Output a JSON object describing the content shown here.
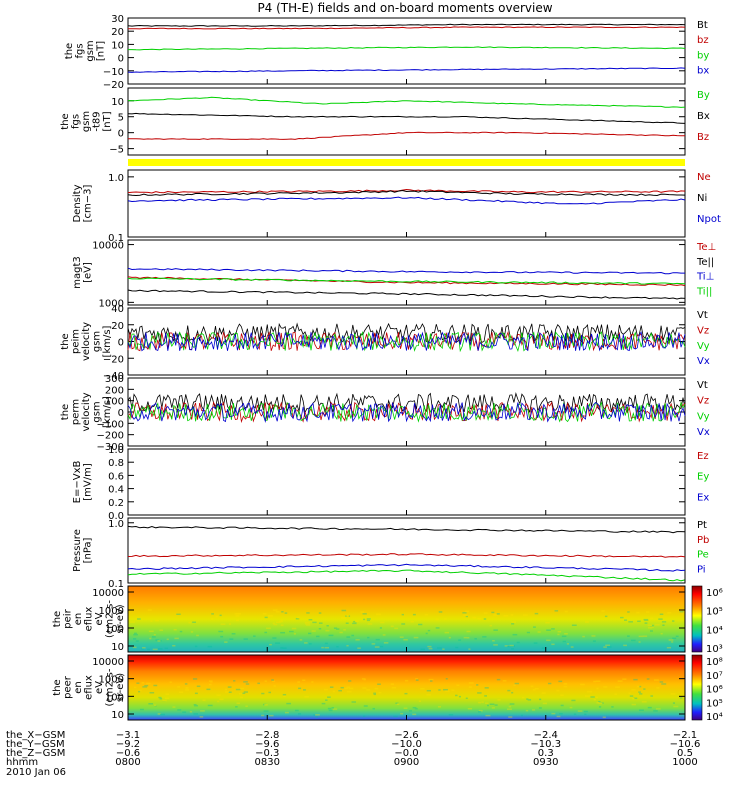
{
  "chart_data": {
    "type": "line",
    "title": "P4 (TH-E) fields and on-board moments overview",
    "panels": [
      {
        "id": "fgs",
        "ylabel_lines": [
          "the",
          "fgs",
          "gsm",
          "[nT]"
        ],
        "yticks": [
          "30",
          "20",
          "10",
          "0",
          "−10",
          "−20"
        ],
        "ylim": [
          -20,
          30
        ],
        "series": [
          {
            "name": "Bt",
            "color": "#000000",
            "x": [
              0,
              0.3,
              0.6,
              1
            ],
            "y": [
              24,
              24,
              25,
              25
            ]
          },
          {
            "name": "bz",
            "color": "#c00000",
            "x": [
              0,
              0.3,
              0.6,
              1
            ],
            "y": [
              22,
              22,
              23,
              23
            ]
          },
          {
            "name": "by",
            "color": "#00d000",
            "x": [
              0,
              0.3,
              0.6,
              1
            ],
            "y": [
              6,
              7,
              8,
              7
            ]
          },
          {
            "name": "bx",
            "color": "#0000d0",
            "x": [
              0,
              0.3,
              0.6,
              1
            ],
            "y": [
              -11,
              -10,
              -9,
              -8
            ]
          }
        ]
      },
      {
        "id": "fgs-dsl",
        "ylabel_lines": [
          "the",
          "fgs",
          "gsm",
          "-t89",
          "[nT]"
        ],
        "yticks": [
          "10",
          "5",
          "0",
          "−5"
        ],
        "ylim": [
          -7,
          14
        ],
        "series": [
          {
            "name": "By",
            "color": "#00d000",
            "x": [
              0,
              0.15,
              0.35,
              0.5,
              0.7,
              1
            ],
            "y": [
              10,
              11,
              9,
              10,
              9,
              8
            ]
          },
          {
            "name": "Bx",
            "color": "#000000",
            "x": [
              0,
              0.3,
              0.6,
              1
            ],
            "y": [
              6,
              5,
              5,
              3
            ]
          },
          {
            "name": "Bz",
            "color": "#c00000",
            "x": [
              0,
              0.3,
              0.5,
              0.7,
              1
            ],
            "y": [
              -2,
              -2,
              0,
              0,
              -1
            ]
          }
        ]
      },
      {
        "id": "mode",
        "ylabel_lines": [],
        "yticks": [],
        "ylim": [
          0,
          1
        ],
        "series": []
      },
      {
        "id": "density",
        "ylabel_lines": [
          "Density",
          "[cm−3]"
        ],
        "yticks": [
          "1.0",
          "0.1"
        ],
        "yscale": "log",
        "ylim": [
          0.1,
          1.3
        ],
        "series": [
          {
            "name": "Ne",
            "color": "#c00000",
            "x": [
              0,
              0.4,
              0.5,
              0.7,
              1
            ],
            "y": [
              0.55,
              0.58,
              0.6,
              0.56,
              0.57
            ]
          },
          {
            "name": "Ni",
            "color": "#000000",
            "x": [
              0,
              0.4,
              0.5,
              0.7,
              1
            ],
            "y": [
              0.5,
              0.55,
              0.58,
              0.52,
              0.5
            ]
          },
          {
            "name": "Npot",
            "color": "#0000d0",
            "x": [
              0,
              0.5,
              0.8,
              1
            ],
            "y": [
              0.4,
              0.45,
              0.35,
              0.42
            ]
          }
        ]
      },
      {
        "id": "temperature",
        "ylabel_lines": [
          "magt3",
          "[eV]"
        ],
        "yticks": [
          "10000",
          "1000"
        ],
        "yscale": "log",
        "ylim": [
          900,
          12000
        ],
        "series": [
          {
            "name": "Te⊥",
            "color": "#c00000",
            "x": [
              0,
              0.5,
              1
            ],
            "y": [
              2700,
              2200,
              2000
            ]
          },
          {
            "name": "Te||",
            "color": "#000000",
            "x": [
              0,
              0.5,
              1
            ],
            "y": [
              1600,
              1400,
              1150
            ]
          },
          {
            "name": "Ti⊥",
            "color": "#0000d0",
            "x": [
              0,
              0.5,
              1
            ],
            "y": [
              3800,
              3400,
              3200
            ]
          },
          {
            "name": "Ti||",
            "color": "#00d000",
            "x": [
              0,
              0.5,
              1
            ],
            "y": [
              2600,
              2300,
              2100
            ]
          }
        ]
      },
      {
        "id": "velocity-peim",
        "ylabel_lines": [
          "the",
          "peim",
          "velocity",
          "gsm",
          "[km/s]"
        ],
        "yticks": [
          "40",
          "20",
          "0",
          "−20",
          "−40"
        ],
        "ylim": [
          -40,
          40
        ],
        "series": [
          {
            "name": "Vt",
            "color": "#000000",
            "x": [
              0,
              1
            ],
            "y": [
              10,
              10
            ]
          },
          {
            "name": "Vz",
            "color": "#c00000",
            "x": [
              0,
              1
            ],
            "y": [
              0,
              0
            ]
          },
          {
            "name": "Vy",
            "color": "#00d000",
            "x": [
              0,
              1
            ],
            "y": [
              0,
              0
            ]
          },
          {
            "name": "Vx",
            "color": "#0000d0",
            "x": [
              0,
              1
            ],
            "y": [
              0,
              0
            ]
          }
        ]
      },
      {
        "id": "velocity-perm",
        "ylabel_lines": [
          "the",
          "perm",
          "velocity",
          "gsm",
          "[km/s]"
        ],
        "yticks": [
          "300",
          "200",
          "100",
          "0",
          "−100",
          "−200",
          "−300"
        ],
        "ylim": [
          -300,
          300
        ],
        "series": [
          {
            "name": "Vt",
            "color": "#000000",
            "x": [
              0,
              1
            ],
            "y": [
              80,
              80
            ]
          },
          {
            "name": "Vz",
            "color": "#c00000",
            "x": [
              0,
              1
            ],
            "y": [
              0,
              0
            ]
          },
          {
            "name": "Vy",
            "color": "#00d000",
            "x": [
              0,
              1
            ],
            "y": [
              0,
              0
            ]
          },
          {
            "name": "Vx",
            "color": "#0000d0",
            "x": [
              0,
              1
            ],
            "y": [
              0,
              0
            ]
          }
        ]
      },
      {
        "id": "efield",
        "ylabel_lines": [
          "E=−VxB",
          "[mV/m]"
        ],
        "yticks": [
          "1.0",
          "0.8",
          "0.6",
          "0.4",
          "0.2",
          "0.0"
        ],
        "ylim": [
          0,
          1
        ],
        "series": [
          {
            "name": "Ez",
            "color": "#c00000",
            "x": [],
            "y": []
          },
          {
            "name": "Ey",
            "color": "#00d000",
            "x": [],
            "y": []
          },
          {
            "name": "Ex",
            "color": "#0000d0",
            "x": [],
            "y": []
          }
        ]
      },
      {
        "id": "pressure",
        "ylabel_lines": [
          "Pressure",
          "[nPa]"
        ],
        "yticks": [
          "1.0",
          "0.1"
        ],
        "yscale": "log",
        "ylim": [
          0.1,
          1.2
        ],
        "series": [
          {
            "name": "Pt",
            "color": "#000000",
            "x": [
              0,
              0.5,
              1
            ],
            "y": [
              0.85,
              0.78,
              0.7
            ]
          },
          {
            "name": "Pb",
            "color": "#c00000",
            "x": [
              0,
              0.5,
              1
            ],
            "y": [
              0.28,
              0.3,
              0.27
            ]
          },
          {
            "name": "Pe",
            "color": "#00d000",
            "x": [
              0,
              0.5,
              1
            ],
            "y": [
              0.14,
              0.16,
              0.11
            ]
          },
          {
            "name": "Pi",
            "color": "#0000d0",
            "x": [
              0,
              0.5,
              1
            ],
            "y": [
              0.17,
              0.2,
              0.16
            ]
          }
        ]
      },
      {
        "id": "ion-spectrogram",
        "ylabel_lines": [
          "the",
          "peir",
          "en",
          "eflux",
          "eV",
          "(cm2-s-",
          "sr-eV)"
        ],
        "yticks": [
          "10000",
          "1000",
          "100",
          "10"
        ],
        "colorbar_ticks": [
          "10⁶",
          "10⁵",
          "10⁴",
          "10³"
        ]
      },
      {
        "id": "electron-spectrogram",
        "ylabel_lines": [
          "the",
          "peer",
          "en",
          "eflux",
          "eV",
          "(cm2-s-",
          "sr-eV)"
        ],
        "yticks": [
          "10000",
          "1000",
          "100",
          "10"
        ],
        "colorbar_ticks": [
          "10⁸",
          "10⁷",
          "10⁶",
          "10⁵",
          "10⁴"
        ]
      }
    ],
    "x_axis": {
      "row_labels": [
        "the_X−GSM",
        "the_Y−GSM",
        "the_Z−GSM",
        "hhmm",
        "2010 Jan 06"
      ],
      "ticks": [
        {
          "x_gsm": "−3.1",
          "y_gsm": "−9.2",
          "z_gsm": "−0.6",
          "hhmm": "0800"
        },
        {
          "x_gsm": "−2.8",
          "y_gsm": "−9.6",
          "z_gsm": "−0.3",
          "hhmm": "0830"
        },
        {
          "x_gsm": "−2.6",
          "y_gsm": "−10.0",
          "z_gsm": "−0.0",
          "hhmm": "0900"
        },
        {
          "x_gsm": "−2.4",
          "y_gsm": "−10.3",
          "z_gsm": "0.3",
          "hhmm": "0930"
        },
        {
          "x_gsm": "−2.1",
          "y_gsm": "−10.6",
          "z_gsm": "0.5",
          "hhmm": "1000"
        }
      ]
    }
  }
}
